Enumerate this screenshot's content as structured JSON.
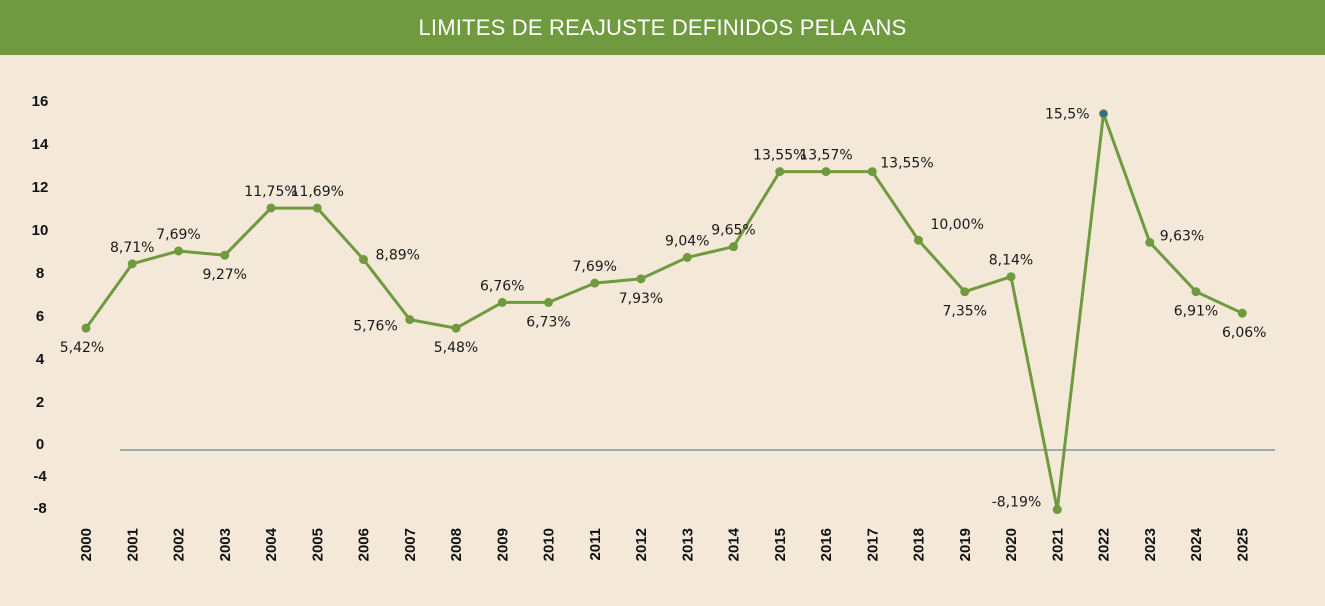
{
  "header": {
    "title": "LIMITES DE REAJUSTE DEFINIDOS PELA ANS"
  },
  "colors": {
    "header_bg": "#6f9a3f",
    "background": "#f4e9d9",
    "line": "#6f9a3f",
    "zero_line": "#5f8a90",
    "highlight_point": "#2e6f8e"
  },
  "chart_data": {
    "type": "line",
    "title": "LIMITES DE REAJUSTE DEFINIDOS PELA ANS",
    "xlabel": "",
    "ylabel": "",
    "y_ticks": [
      "16",
      "14",
      "12",
      "10",
      "8",
      "6",
      "4",
      "2",
      "0",
      "-4",
      "-8"
    ],
    "grid": false,
    "legend": "none",
    "categories": [
      "2000",
      "2001",
      "2002",
      "2003",
      "2004",
      "2005",
      "2006",
      "2007",
      "2008",
      "2009",
      "2010",
      "2011",
      "2012",
      "2013",
      "2014",
      "2015",
      "2016",
      "2017",
      "2018",
      "2019",
      "2020",
      "2021",
      "2022",
      "2023",
      "2024",
      "2025"
    ],
    "series": [
      {
        "values": [
          5.42,
          8.71,
          7.69,
          9.27,
          11.75,
          11.69,
          8.89,
          5.76,
          5.48,
          6.76,
          6.73,
          7.69,
          7.93,
          9.04,
          9.65,
          13.55,
          13.57,
          13.55,
          10.0,
          7.35,
          8.14,
          -8.19,
          15.5,
          9.63,
          6.91,
          6.06
        ],
        "plotted": [
          5.4,
          8.4,
          9.0,
          8.8,
          11.0,
          11.0,
          8.6,
          5.8,
          5.4,
          6.6,
          6.6,
          7.5,
          7.7,
          8.7,
          9.2,
          12.7,
          12.7,
          12.7,
          9.5,
          7.1,
          7.8,
          -8.2,
          15.4,
          9.4,
          7.1,
          6.1
        ],
        "labels": [
          "5,42%",
          "8,71%",
          "7,69%",
          "9,27%",
          "11,75%",
          "11,69%",
          "8,89%",
          "5,76%",
          "5,48%",
          "6,76%",
          "6,73%",
          "7,69%",
          "7,93%",
          "9,04%",
          "9,65%",
          "13,55%",
          "13,57%",
          "13,55%",
          "10,00%",
          "7,35%",
          "8,14%",
          "-8,19%",
          "15,5%",
          "9,63%",
          "6,91%",
          "6,06%"
        ],
        "label_positions": [
          "below",
          "above",
          "above",
          "below",
          "above",
          "above",
          "right",
          "left",
          "below",
          "above",
          "below",
          "above",
          "below",
          "above",
          "above",
          "above",
          "above",
          "right",
          "right",
          "below",
          "above",
          "left",
          "left",
          "right",
          "below",
          "below"
        ]
      }
    ]
  }
}
